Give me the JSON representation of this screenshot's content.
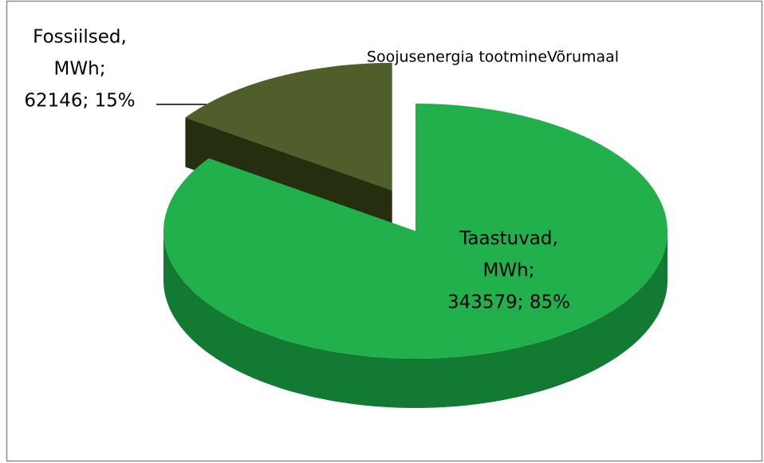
{
  "chart_data": {
    "type": "pie3d",
    "title": "Soojusenergia tootmineVõrumaal",
    "values": [
      343579,
      62146
    ],
    "value_labels": [
      [
        "Taastuvad,",
        "MWh;",
        "343579; 85%"
      ],
      [
        "Fossiilsed,",
        "MWh;",
        "62146; 15%"
      ]
    ],
    "colors": [
      "#22b04d",
      "#4f5e2a"
    ],
    "side_colors": [
      "#127a33",
      "#262e10"
    ],
    "exploded": [
      false,
      true
    ]
  }
}
